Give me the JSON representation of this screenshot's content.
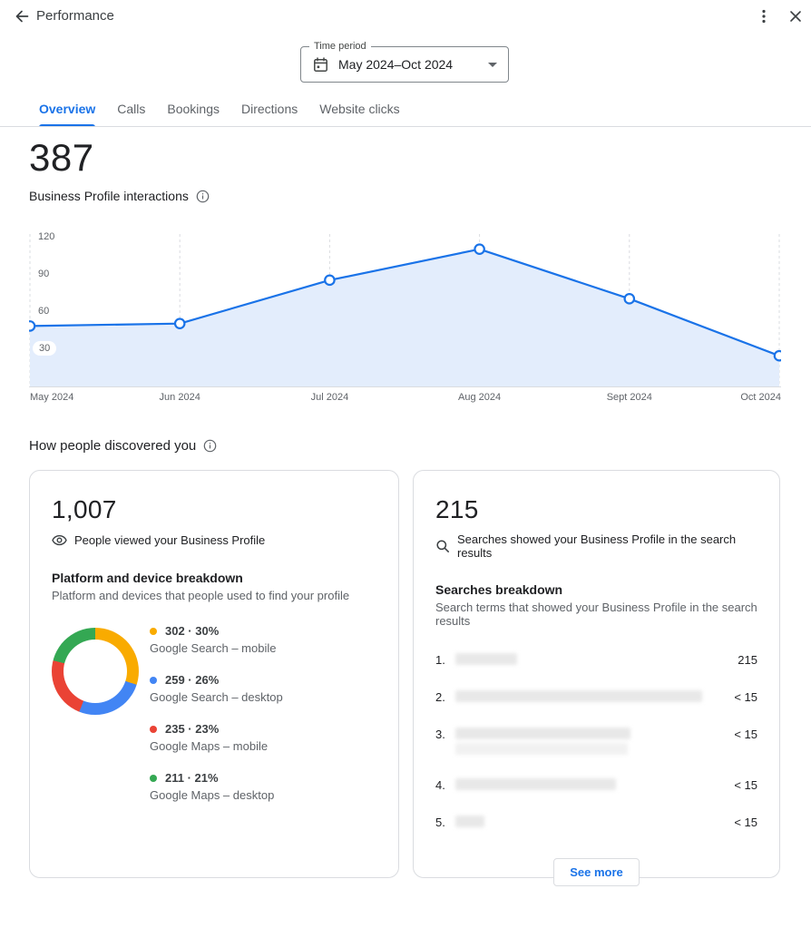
{
  "header": {
    "title": "Performance"
  },
  "time_period": {
    "label": "Time period",
    "value": "May 2024–Oct 2024"
  },
  "tabs": [
    {
      "label": "Overview",
      "active": true
    },
    {
      "label": "Calls",
      "active": false
    },
    {
      "label": "Bookings",
      "active": false
    },
    {
      "label": "Directions",
      "active": false
    },
    {
      "label": "Website clicks",
      "active": false
    }
  ],
  "summary": {
    "value": "387",
    "label": "Business Profile interactions"
  },
  "section_title": "How people discovered you",
  "chart_data": [
    {
      "id": "interactions-over-time",
      "type": "area",
      "title": "Business Profile interactions",
      "x": [
        "May 2024",
        "Jun 2024",
        "Jul 2024",
        "Aug 2024",
        "Sept 2024",
        "Oct 2024"
      ],
      "values": [
        48,
        50,
        85,
        110,
        70,
        24
      ],
      "yticks": [
        30,
        60,
        90,
        120
      ],
      "ylim": [
        0,
        126
      ],
      "line_color": "#1a73e8",
      "fill_color": "#e3edfc",
      "grid_color": "#dadce0",
      "marker": "open-circle",
      "grid": "vertical-dashed",
      "legend": "none"
    },
    {
      "id": "platform-device-breakdown",
      "type": "donut",
      "title": "Platform and device breakdown",
      "segments": [
        {
          "label": "Google Search – mobile",
          "value": 302,
          "percent": 30,
          "stat": "302 · 30%",
          "color": "#F9AB00"
        },
        {
          "label": "Google Search – desktop",
          "value": 259,
          "percent": 26,
          "stat": "259 · 26%",
          "color": "#4285F4"
        },
        {
          "label": "Google Maps – mobile",
          "value": 235,
          "percent": 23,
          "stat": "235 · 23%",
          "color": "#EA4335"
        },
        {
          "label": "Google Maps – desktop",
          "value": 211,
          "percent": 21,
          "stat": "211 · 21%",
          "color": "#34A853"
        }
      ]
    }
  ],
  "views_card": {
    "value": "1,007",
    "label": "People viewed your Business Profile",
    "section_title": "Platform and device breakdown",
    "section_subtitle": "Platform and devices that people used to find your profile"
  },
  "searches_card": {
    "value": "215",
    "label": "Searches showed your Business Profile in the search results",
    "section_title": "Searches breakdown",
    "section_subtitle": "Search terms that showed your Business Profile in the search results",
    "rows": [
      {
        "rank": "1.",
        "term_blurred": true,
        "redact_widths": [
          68
        ],
        "count": "215"
      },
      {
        "rank": "2.",
        "term_blurred": true,
        "redact_widths": [
          272
        ],
        "count": "< 15"
      },
      {
        "rank": "3.",
        "term_blurred": true,
        "redact_widths": [
          193,
          190
        ],
        "count": "< 15"
      },
      {
        "rank": "4.",
        "term_blurred": true,
        "redact_widths": [
          177
        ],
        "count": "< 15"
      },
      {
        "rank": "5.",
        "term_blurred": true,
        "redact_widths": [
          32
        ],
        "count": "< 15"
      }
    ],
    "see_more_label": "See more"
  },
  "colors": {
    "accent": "#1a73e8",
    "divider": "#dadce0",
    "text_primary": "#202124",
    "text_secondary": "#5f6368"
  }
}
